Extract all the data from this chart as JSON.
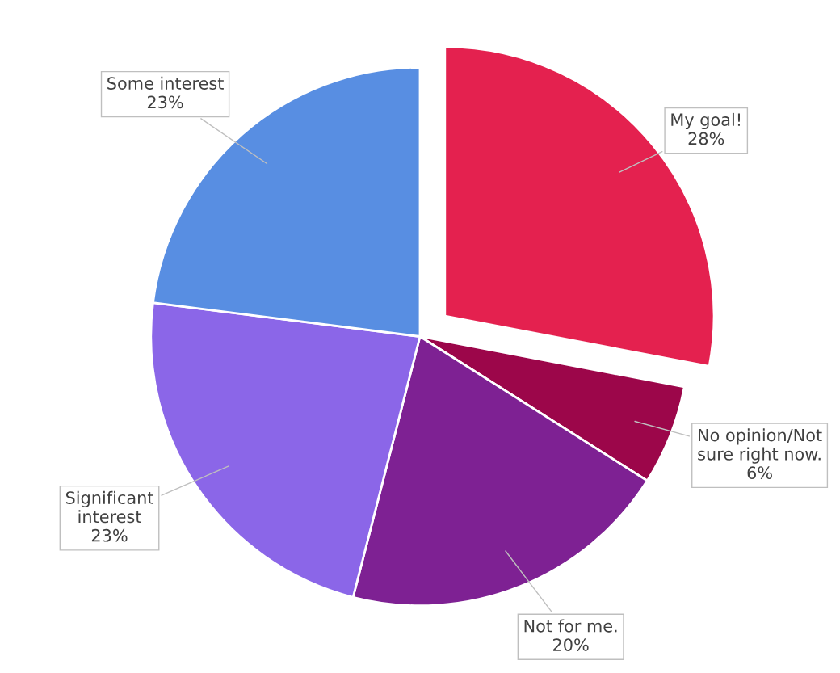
{
  "chart_data": {
    "type": "pie",
    "categories": [
      "My goal!",
      "No opinion/Not\nsure right now.",
      "Not for me.",
      "Significant\ninterest",
      "Some interest"
    ],
    "values": [
      28,
      6,
      20,
      23,
      23
    ],
    "value_labels": [
      "28%",
      "6%",
      "20%",
      "23%",
      "23%"
    ],
    "colors": [
      "#e4214f",
      "#9c064a",
      "#7e2193",
      "#8b66e8",
      "#588ee2"
    ]
  }
}
